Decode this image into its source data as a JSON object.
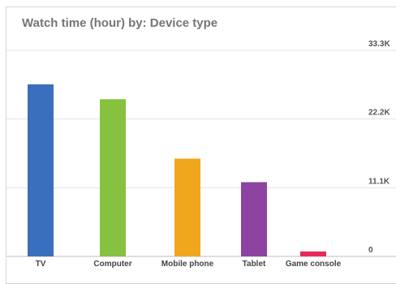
{
  "chart_data": {
    "type": "bar",
    "title": "Watch time (hour) by: Device type",
    "xlabel": "",
    "ylabel": "",
    "ylim": [
      0,
      33300
    ],
    "y_ticks": [
      "0",
      "11.1K",
      "22.2K",
      "33.3K"
    ],
    "y_tick_values": [
      0,
      11100,
      22200,
      33300
    ],
    "y_axis_position": "right",
    "grid": true,
    "legend": "none",
    "categories": [
      "TV",
      "Computer",
      "Mobile phone",
      "Tablet",
      "Game console"
    ],
    "values": [
      27800,
      25400,
      15800,
      12000,
      800
    ],
    "colors": [
      "#3a6fbe",
      "#86c23f",
      "#f0a61d",
      "#8c44a0",
      "#e6295a"
    ]
  }
}
